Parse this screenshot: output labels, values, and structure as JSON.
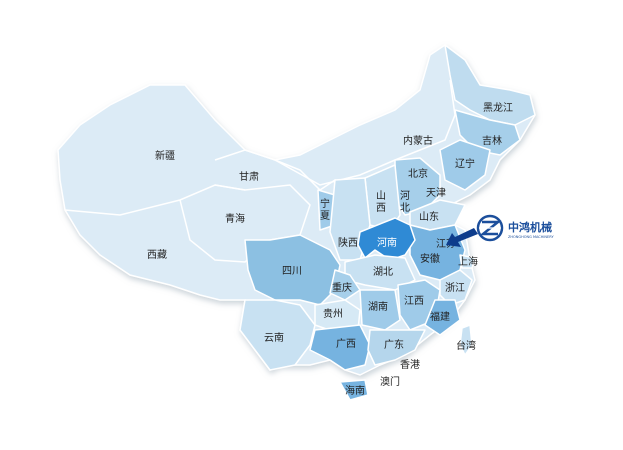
{
  "map": {
    "colors": {
      "base": "#dcebf6",
      "light": "#c8e1f2",
      "mid": "#a6cfea",
      "dark": "#76b3e0",
      "highlight": "#2f8ad5",
      "arrow": "#0d3c8c"
    },
    "provinces": {
      "xinjiang": "新疆",
      "tibet": "西藏",
      "qinghai": "青海",
      "gansu": "甘肃",
      "inner_mongolia": "内蒙古",
      "heilongjiang": "黑龙江",
      "jilin": "吉林",
      "liaoning": "辽宁",
      "beijing": "北京",
      "tianjin": "天津",
      "hebei_1": "河",
      "hebei_2": "北",
      "shanxi_1": "山",
      "shanxi_2": "西",
      "shandong": "山东",
      "ningxia_1": "宁",
      "ningxia_2": "夏",
      "shaanxi": "陕西",
      "henan": "河南",
      "jiangsu": "江苏",
      "anhui": "安徽",
      "shanghai": "上海",
      "hubei": "湖北",
      "sichuan": "四川",
      "chongqing": "重庆",
      "zhejiang": "浙江",
      "hunan": "湖南",
      "jiangxi": "江西",
      "guizhou": "贵州",
      "fujian": "福建",
      "yunnan": "云南",
      "guangxi": "广西",
      "guangdong": "广东",
      "taiwan": "台湾",
      "hongkong": "香港",
      "macau": "澳门",
      "hainan": "海南"
    },
    "highlighted": "henan"
  },
  "logo": {
    "name": "中鸿机械",
    "subtitle": "ZHONGHONG MACHINERY",
    "icon": "z-circle-logo"
  }
}
